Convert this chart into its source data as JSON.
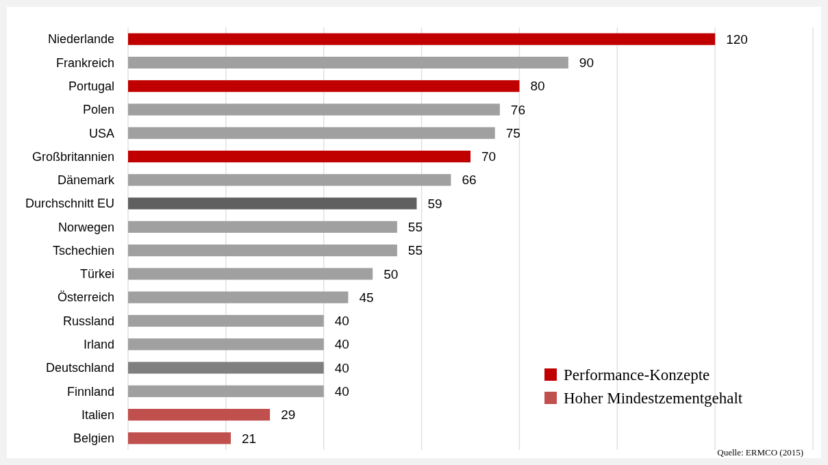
{
  "chart_data": {
    "type": "bar",
    "orientation": "horizontal",
    "categories": [
      "Niederlande",
      "Frankreich",
      "Portugal",
      "Polen",
      "USA",
      "Großbritannien",
      "Dänemark",
      "Durchschnitt EU",
      "Norwegen",
      "Tschechien",
      "Türkei",
      "Österreich",
      "Russland",
      "Irland",
      "Deutschland",
      "Finnland",
      "Italien",
      "Belgien"
    ],
    "series": [
      {
        "name": "Performance-Konzepte",
        "color": "#c00000",
        "values": [
          120,
          null,
          80,
          null,
          null,
          70,
          null,
          null,
          null,
          null,
          null,
          null,
          null,
          null,
          null,
          null,
          null,
          null
        ]
      },
      {
        "name": "Hoher Mindestzementgehalt",
        "color": "#c0504d",
        "values": [
          null,
          null,
          null,
          null,
          null,
          null,
          null,
          null,
          null,
          null,
          null,
          null,
          null,
          null,
          null,
          null,
          29,
          21
        ]
      },
      {
        "colors": [
          null,
          "#a0a0a0",
          null,
          "#a0a0a0",
          "#a0a0a0",
          null,
          "#a0a0a0",
          "#606060",
          "#a0a0a0",
          "#a0a0a0",
          "#a0a0a0",
          "#a0a0a0",
          "#a0a0a0",
          "#a0a0a0",
          "#7f7f7f",
          "#a0a0a0",
          null,
          null
        ],
        "values": [
          null,
          90,
          null,
          76,
          75,
          null,
          66,
          59,
          55,
          55,
          50,
          45,
          40,
          40,
          40,
          40,
          null,
          null
        ]
      }
    ],
    "xlim": [
      0,
      140
    ],
    "xticks": [
      {
        "value": 0,
        "label": null
      },
      {
        "value": 20,
        "label": null
      },
      {
        "value": 40,
        "label": null
      },
      {
        "value": 60,
        "label": null
      },
      {
        "value": 80,
        "label": null
      },
      {
        "value": 100,
        "label": null
      },
      {
        "value": 120,
        "label": null
      },
      {
        "value": 140,
        "label": null
      }
    ],
    "tick_labels": "y",
    "grid": "x",
    "data_labels": true,
    "legend": "bottom right",
    "annotations": [
      "Quelle: ERMCO (2015)"
    ]
  }
}
